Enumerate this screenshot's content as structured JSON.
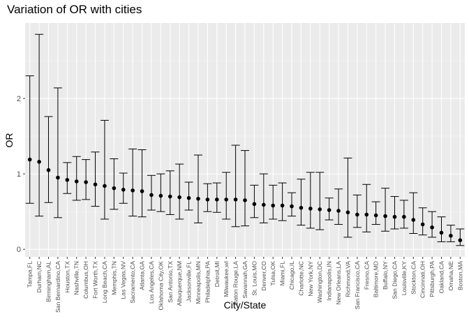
{
  "chart_data": {
    "type": "errorbar",
    "title": "Variation of OR with cities",
    "xlabel": "City/State",
    "ylabel": "OR",
    "ylim": [
      -0.1,
      3.0
    ],
    "yticks": [
      0,
      1,
      2
    ],
    "ytick_labels": [
      "0",
      "1",
      "2"
    ],
    "grid": true,
    "legend": "none",
    "colors": {
      "panel_bg": "#ebebeb",
      "grid_major": "#ffffff",
      "grid_minor": "#f5f5f5",
      "mark": "#000000"
    },
    "points": [
      {
        "city": "Tampa,FL",
        "or": 1.19,
        "lower": 0.61,
        "upper": 2.3
      },
      {
        "city": "Durham,NC",
        "or": 1.16,
        "lower": 0.44,
        "upper": 2.85
      },
      {
        "city": "Birmingham,AL",
        "or": 1.05,
        "lower": 0.62,
        "upper": 1.76
      },
      {
        "city": "San Bernardino,CA",
        "or": 0.95,
        "lower": 0.42,
        "upper": 2.14
      },
      {
        "city": "Houston,TX",
        "or": 0.92,
        "lower": 0.74,
        "upper": 1.15
      },
      {
        "city": "Nashville,TN",
        "or": 0.9,
        "lower": 0.65,
        "upper": 1.23
      },
      {
        "city": "Columbus,OH",
        "or": 0.89,
        "lower": 0.66,
        "upper": 1.19
      },
      {
        "city": "Fort Worth,TX",
        "or": 0.86,
        "lower": 0.57,
        "upper": 1.29
      },
      {
        "city": "Long Beach,CA",
        "or": 0.84,
        "lower": 0.4,
        "upper": 1.71
      },
      {
        "city": "Memphis,TN",
        "or": 0.81,
        "lower": 0.53,
        "upper": 1.2
      },
      {
        "city": "Las Vegas,NV",
        "or": 0.79,
        "lower": 0.61,
        "upper": 1.01
      },
      {
        "city": "Sacramento,CA",
        "or": 0.78,
        "lower": 0.44,
        "upper": 1.33
      },
      {
        "city": "Atlanta,GA",
        "or": 0.77,
        "lower": 0.43,
        "upper": 1.32
      },
      {
        "city": "Los Angeles,CA",
        "or": 0.72,
        "lower": 0.52,
        "upper": 0.98
      },
      {
        "city": "Oklahoma City,OK",
        "or": 0.71,
        "lower": 0.5,
        "upper": 1.0
      },
      {
        "city": "San Antonio,TX",
        "or": 0.7,
        "lower": 0.46,
        "upper": 1.04
      },
      {
        "city": "Albuquerque,NM",
        "or": 0.69,
        "lower": 0.4,
        "upper": 1.13
      },
      {
        "city": "Jacksonville,FL",
        "or": 0.68,
        "lower": 0.52,
        "upper": 0.89
      },
      {
        "city": "Minneapolis,MN",
        "or": 0.67,
        "lower": 0.35,
        "upper": 1.25
      },
      {
        "city": "Philadelphia,PA",
        "or": 0.66,
        "lower": 0.5,
        "upper": 0.87
      },
      {
        "city": "Detroit,MI",
        "or": 0.66,
        "lower": 0.49,
        "upper": 0.88
      },
      {
        "city": "Milwaukee,wI",
        "or": 0.66,
        "lower": 0.4,
        "upper": 1.02
      },
      {
        "city": "Baton Rouge,LA",
        "or": 0.66,
        "lower": 0.3,
        "upper": 1.38
      },
      {
        "city": "Savannah,GA",
        "or": 0.65,
        "lower": 0.31,
        "upper": 1.31
      },
      {
        "city": "St. Louis,MO",
        "or": 0.6,
        "lower": 0.42,
        "upper": 0.85
      },
      {
        "city": "Denver,CO",
        "or": 0.59,
        "lower": 0.35,
        "upper": 1.0
      },
      {
        "city": "Tulsa,OK",
        "or": 0.58,
        "lower": 0.4,
        "upper": 0.85
      },
      {
        "city": "Miami,FL",
        "or": 0.58,
        "lower": 0.38,
        "upper": 0.88
      },
      {
        "city": "Chicago,IL",
        "or": 0.57,
        "lower": 0.44,
        "upper": 0.75
      },
      {
        "city": "Charlotte,NC",
        "or": 0.55,
        "lower": 0.32,
        "upper": 0.93
      },
      {
        "city": "New York,NY",
        "or": 0.54,
        "lower": 0.28,
        "upper": 1.02
      },
      {
        "city": "Washington,DC",
        "or": 0.53,
        "lower": 0.26,
        "upper": 1.02
      },
      {
        "city": "Indianapolis,IN",
        "or": 0.52,
        "lower": 0.39,
        "upper": 0.68
      },
      {
        "city": "New Orleans,LA",
        "or": 0.51,
        "lower": 0.33,
        "upper": 0.8
      },
      {
        "city": "Richmond,VA",
        "or": 0.49,
        "lower": 0.16,
        "upper": 1.21
      },
      {
        "city": "San Francisco,CA",
        "or": 0.46,
        "lower": 0.29,
        "upper": 0.72
      },
      {
        "city": "Fresno,CA",
        "or": 0.46,
        "lower": 0.23,
        "upper": 0.86
      },
      {
        "city": "Baltimore,MD",
        "or": 0.45,
        "lower": 0.33,
        "upper": 0.63
      },
      {
        "city": "Buffalo,NY",
        "or": 0.44,
        "lower": 0.24,
        "upper": 0.81
      },
      {
        "city": "San Diego,CA",
        "or": 0.43,
        "lower": 0.27,
        "upper": 0.7
      },
      {
        "city": "Louisville,KY",
        "or": 0.43,
        "lower": 0.28,
        "upper": 0.65
      },
      {
        "city": "Stockton,CA",
        "or": 0.39,
        "lower": 0.21,
        "upper": 0.75
      },
      {
        "city": "Cincinnati,OH",
        "or": 0.33,
        "lower": 0.19,
        "upper": 0.55
      },
      {
        "city": "Pittsburgh,PA",
        "or": 0.29,
        "lower": 0.16,
        "upper": 0.5
      },
      {
        "city": "Oakland,CA",
        "or": 0.22,
        "lower": 0.1,
        "upper": 0.43
      },
      {
        "city": "Omaha,NE",
        "or": 0.18,
        "lower": 0.1,
        "upper": 0.32
      },
      {
        "city": "Boston,MA",
        "or": 0.12,
        "lower": 0.05,
        "upper": 0.27
      }
    ]
  }
}
